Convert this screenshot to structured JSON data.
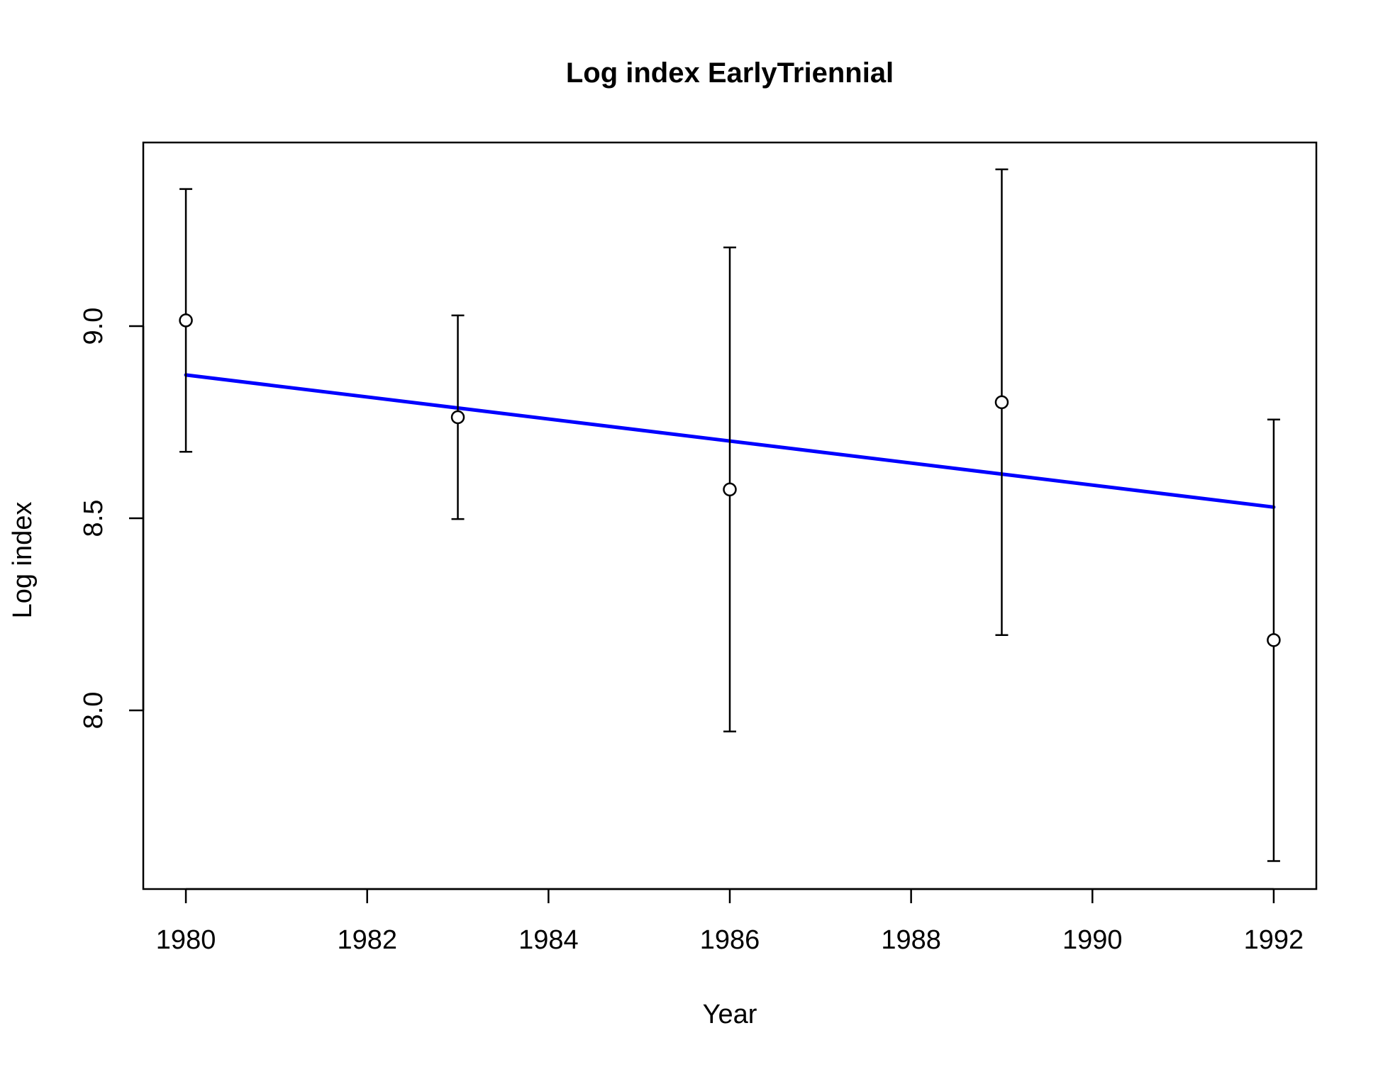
{
  "chart_data": {
    "type": "scatter",
    "title": "Log index EarlyTriennial",
    "xlabel": "Year",
    "ylabel": "Log index",
    "xlim": [
      1979.53,
      1992.47
    ],
    "ylim": [
      7.535,
      9.478
    ],
    "x_ticks": [
      1980,
      1982,
      1984,
      1986,
      1988,
      1990,
      1992
    ],
    "x_tick_labels": [
      "1980",
      "1982",
      "1984",
      "1986",
      "1988",
      "1990",
      "1992"
    ],
    "y_ticks": [
      8.0,
      8.5,
      9.0
    ],
    "y_tick_labels": [
      "8.0",
      "8.5",
      "9.0"
    ],
    "grid": false,
    "series": [
      {
        "kind": "points_with_error_bars",
        "color": "#000000",
        "points": [
          {
            "x": 1980,
            "y": 9.015,
            "lower": 8.673,
            "upper": 9.357
          },
          {
            "x": 1983,
            "y": 8.763,
            "lower": 8.498,
            "upper": 9.028
          },
          {
            "x": 1986,
            "y": 8.575,
            "lower": 7.945,
            "upper": 9.205
          },
          {
            "x": 1989,
            "y": 8.802,
            "lower": 8.196,
            "upper": 9.408
          },
          {
            "x": 1992,
            "y": 8.183,
            "lower": 7.608,
            "upper": 8.757
          }
        ]
      },
      {
        "kind": "fit_line",
        "color": "#0000FF",
        "x": [
          1980,
          1992
        ],
        "y": [
          8.873,
          8.529
        ]
      }
    ]
  }
}
